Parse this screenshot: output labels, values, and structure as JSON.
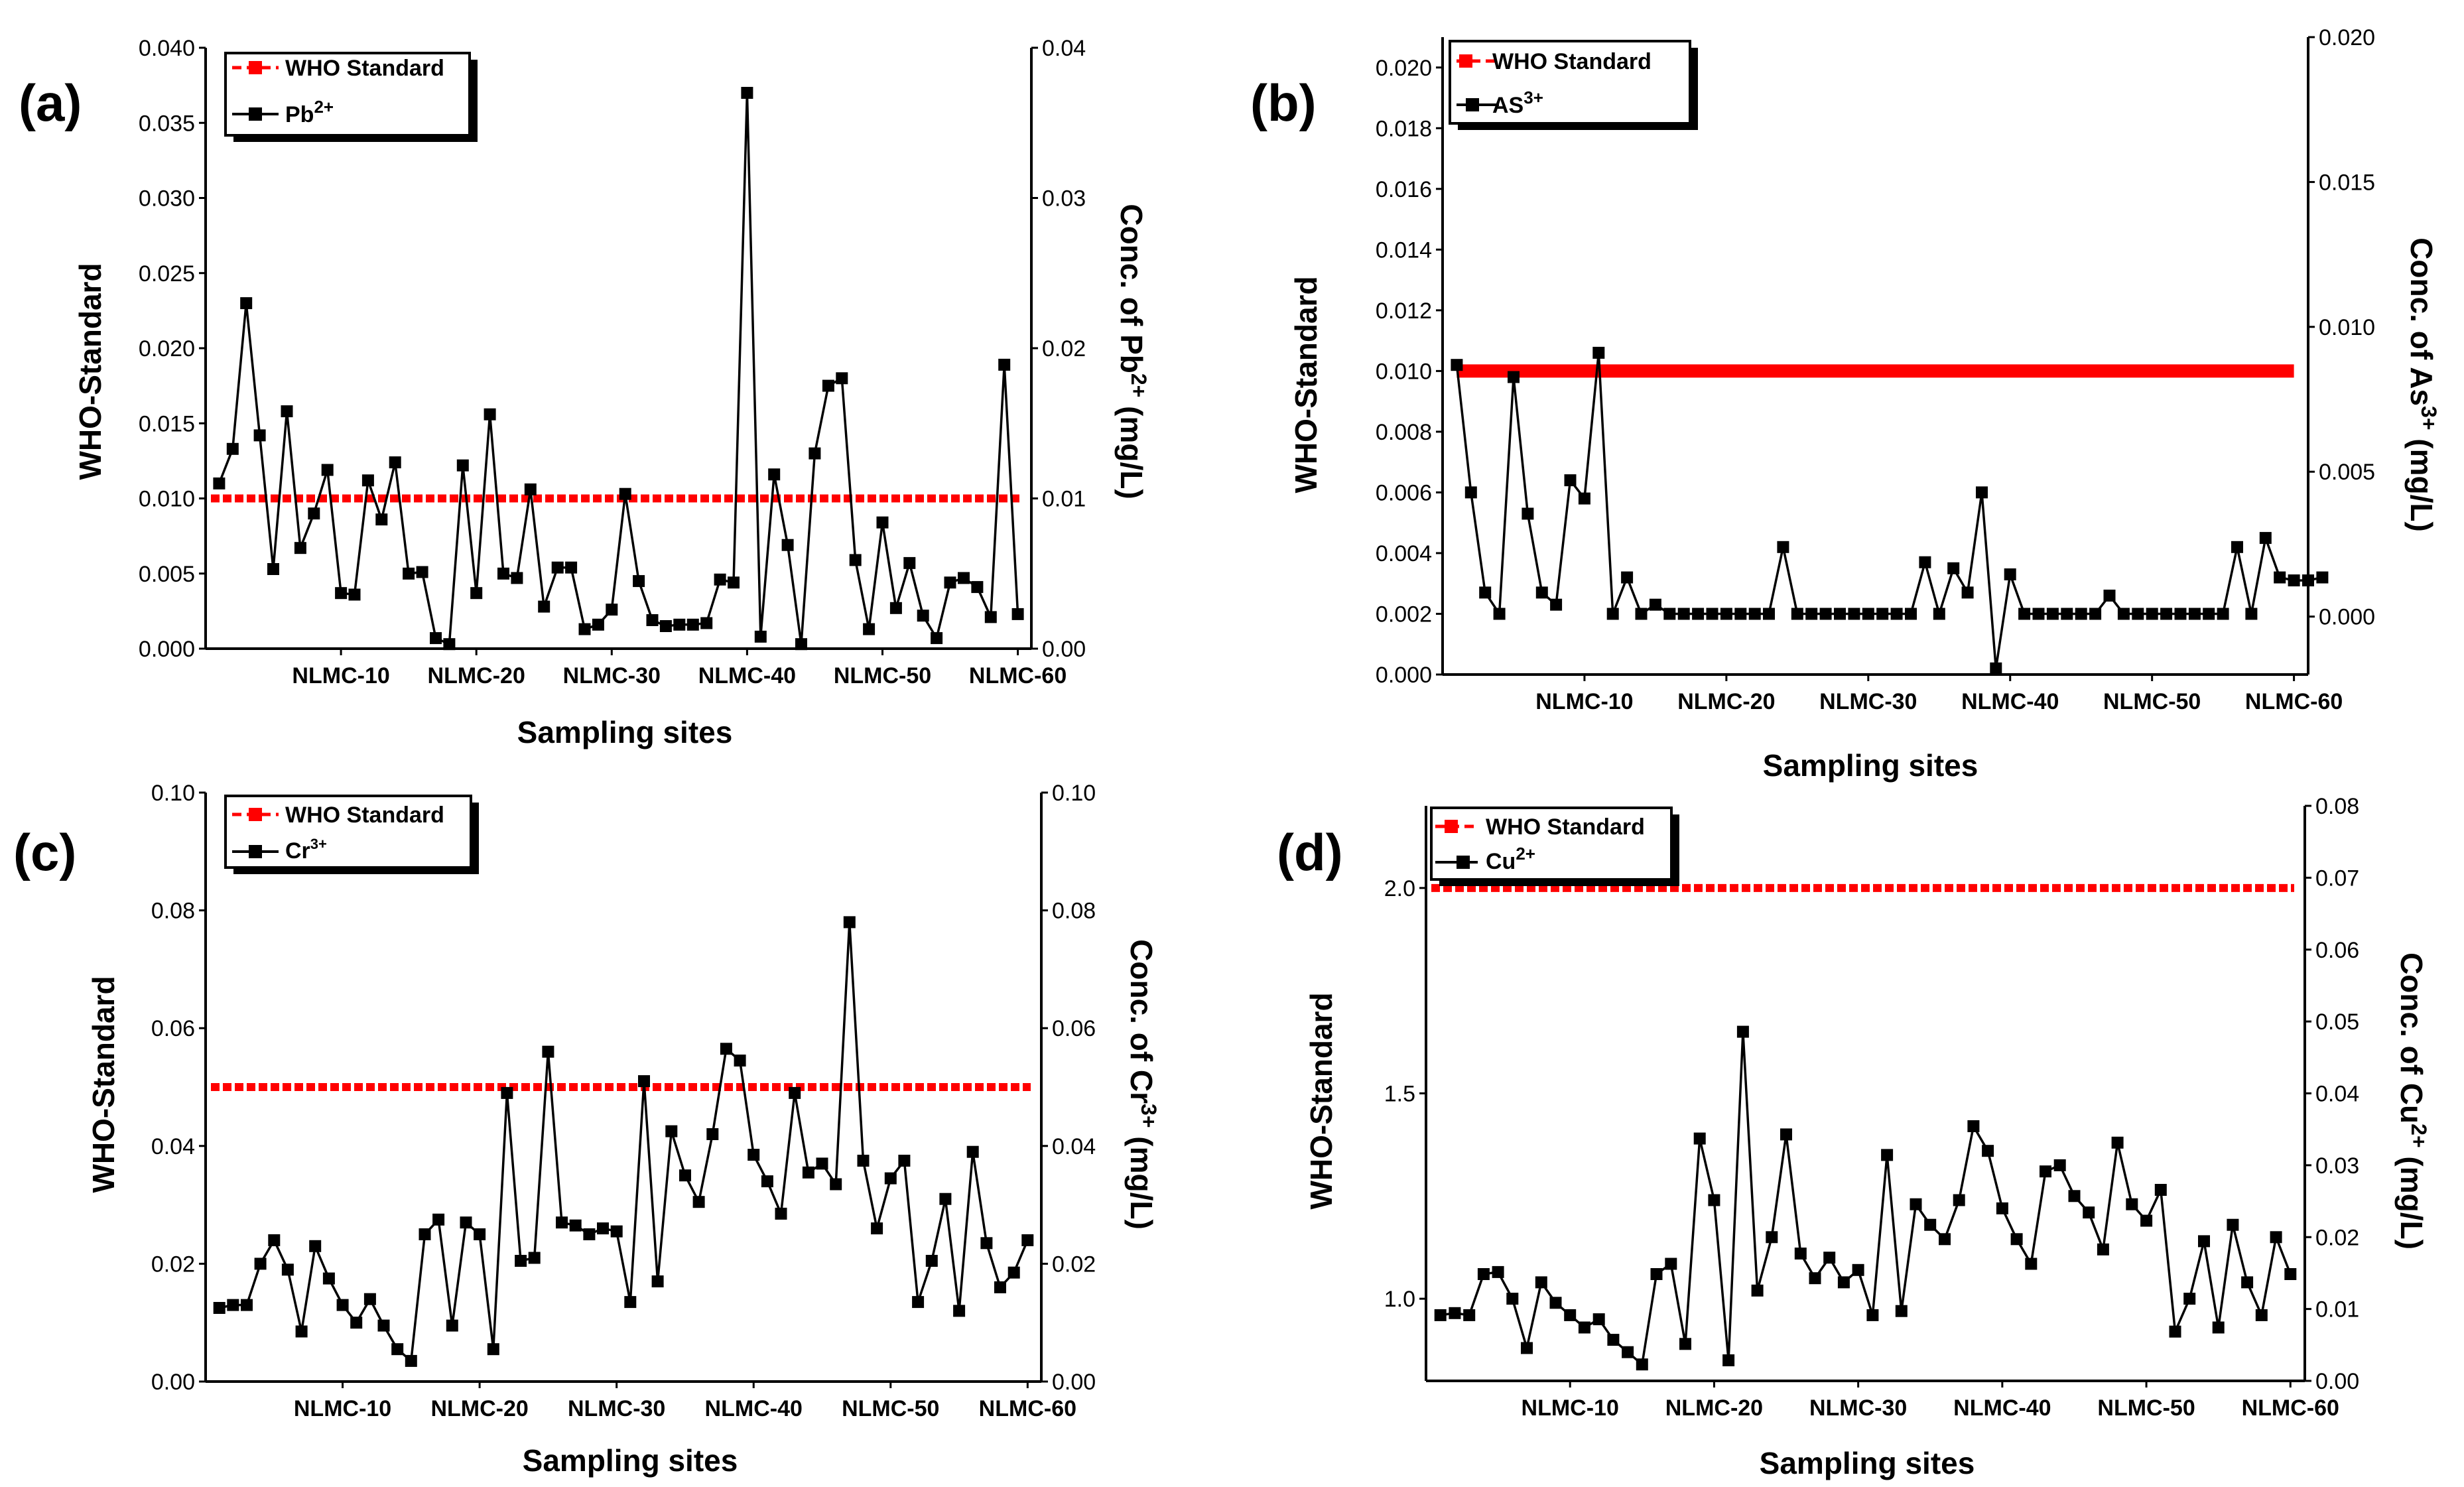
{
  "chart_data": [
    {
      "type": "line",
      "panel_label": "(a)",
      "xlabel": "Sampling sites",
      "ylabel_left": "WHO-Standard",
      "ylabel_right": "Conc. of Pb",
      "ylabel_right_ion": "2+",
      "ylabel_right_unit": " (mg/L)",
      "x_range": [
        0,
        61
      ],
      "x_ticks": [
        10,
        20,
        30,
        40,
        50,
        60
      ],
      "x_tick_labels": [
        "NLMC-10",
        "NLMC-20",
        "NLMC-30",
        "NLMC-40",
        "NLMC-50",
        "NLMC-60"
      ],
      "y_left_range": [
        0,
        0.04
      ],
      "y_left_ticks": [
        "0.000",
        "0.005",
        "0.010",
        "0.015",
        "0.020",
        "0.025",
        "0.030",
        "0.035",
        "0.040"
      ],
      "y_right_range": [
        0,
        0.04
      ],
      "y_right_ticks": [
        "0.00",
        "0.01",
        "0.02",
        "0.03",
        "0.04"
      ],
      "legend": {
        "position": "top-left",
        "standard_label": "WHO Standard",
        "ion_label": "Pb",
        "ion_charge": "2+"
      },
      "who_standard": {
        "value": 0.01,
        "color": "#ff0000",
        "style": "dashed"
      },
      "series": [
        {
          "name": "Pb2+",
          "color": "#000000",
          "values": [
            0.011,
            0.0133,
            0.023,
            0.0142,
            0.0053,
            0.0158,
            0.0067,
            0.009,
            0.0119,
            0.0037,
            0.0036,
            0.0112,
            0.0086,
            0.0124,
            0.005,
            0.0051,
            0.0007,
            0.0003,
            0.0122,
            0.0037,
            0.0156,
            0.005,
            0.0047,
            0.0106,
            0.0028,
            0.0054,
            0.0054,
            0.0013,
            0.0016,
            0.0026,
            0.0103,
            0.0045,
            0.0019,
            0.0015,
            0.0016,
            0.0016,
            0.0017,
            0.0046,
            0.0044,
            0.037,
            0.0008,
            0.0116,
            0.0069,
            0.0003,
            0.013,
            0.0175,
            0.018,
            0.0059,
            0.0013,
            0.0084,
            0.0027,
            0.0057,
            0.0022,
            0.0007,
            0.0044,
            0.0047,
            0.0041,
            0.0021,
            0.0189,
            0.0023
          ]
        }
      ]
    },
    {
      "type": "line",
      "panel_label": "(b)",
      "xlabel": "Sampling sites",
      "ylabel_left": "WHO-Standard",
      "ylabel_right": "Conc. of As",
      "ylabel_right_ion": "3+",
      "ylabel_right_unit": " (mg/L)",
      "x_range": [
        0,
        61
      ],
      "x_ticks": [
        10,
        20,
        30,
        40,
        50,
        60
      ],
      "x_tick_labels": [
        "NLMC-10",
        "NLMC-20",
        "NLMC-30",
        "NLMC-40",
        "NLMC-50",
        "NLMC-60"
      ],
      "y_left_range": [
        0,
        0.021
      ],
      "y_left_ticks": [
        "0.000",
        "0.002",
        "0.004",
        "0.006",
        "0.008",
        "0.010",
        "0.012",
        "0.014",
        "0.016",
        "0.018",
        "0.020"
      ],
      "y_right_range": [
        -0.002,
        0.02
      ],
      "y_right_ticks": [
        "0.000",
        "0.005",
        "0.010",
        "0.015",
        "0.020"
      ],
      "legend": {
        "position": "top-left",
        "standard_label": "WHO Standard",
        "ion_label": "AS",
        "ion_charge": "3+"
      },
      "who_standard": {
        "value": 0.01,
        "color": "#ff0000",
        "style": "solid-thick"
      },
      "series": [
        {
          "name": "As3+",
          "color": "#000000",
          "values": [
            0.0102,
            0.006,
            0.0027,
            0.002,
            0.0098,
            0.0053,
            0.0027,
            0.0023,
            0.0064,
            0.0058,
            0.0106,
            0.002,
            0.0032,
            0.002,
            0.0023,
            0.002,
            0.002,
            0.002,
            0.002,
            0.002,
            0.002,
            0.002,
            0.002,
            0.0042,
            0.002,
            0.002,
            0.002,
            0.002,
            0.002,
            0.002,
            0.002,
            0.002,
            0.002,
            0.0037,
            0.002,
            0.0035,
            0.0027,
            0.006,
            0.0002,
            0.0033,
            0.002,
            0.002,
            0.002,
            0.002,
            0.002,
            0.002,
            0.0026,
            0.002,
            0.002,
            0.002,
            0.002,
            0.002,
            0.002,
            0.002,
            0.002,
            0.0042,
            0.002,
            0.0045,
            0.0032,
            0.0031,
            0.0031,
            0.0032
          ]
        }
      ]
    },
    {
      "type": "line",
      "panel_label": "(c)",
      "xlabel": "Sampling sites",
      "ylabel_left": "WHO-Standard",
      "ylabel_right": "Conc. of Cr",
      "ylabel_right_ion": "3+",
      "ylabel_right_unit": " (mg/L)",
      "x_range": [
        0,
        61
      ],
      "x_ticks": [
        10,
        20,
        30,
        40,
        50,
        60
      ],
      "x_tick_labels": [
        "NLMC-10",
        "NLMC-20",
        "NLMC-30",
        "NLMC-40",
        "NLMC-50",
        "NLMC-60"
      ],
      "y_left_range": [
        0,
        0.1
      ],
      "y_left_ticks": [
        "0.00",
        "0.02",
        "0.04",
        "0.06",
        "0.08",
        "0.10"
      ],
      "y_right_range": [
        0,
        0.1
      ],
      "y_right_ticks": [
        "0.00",
        "0.02",
        "0.04",
        "0.06",
        "0.08",
        "0.10"
      ],
      "legend": {
        "position": "top-left",
        "standard_label": "WHO Standard",
        "ion_label": "Cr",
        "ion_charge": "3+"
      },
      "who_standard": {
        "value": 0.05,
        "color": "#ff0000",
        "style": "dashed"
      },
      "series": [
        {
          "name": "Cr3+",
          "color": "#000000",
          "values": [
            0.0125,
            0.013,
            0.013,
            0.02,
            0.024,
            0.019,
            0.0085,
            0.023,
            0.0175,
            0.013,
            0.01,
            0.014,
            0.0095,
            0.0055,
            0.0035,
            0.025,
            0.0275,
            0.0095,
            0.027,
            0.025,
            0.0055,
            0.049,
            0.0205,
            0.021,
            0.056,
            0.027,
            0.0265,
            0.025,
            0.026,
            0.0255,
            0.0135,
            0.051,
            0.017,
            0.0425,
            0.035,
            0.0305,
            0.042,
            0.0565,
            0.0545,
            0.0385,
            0.034,
            0.0285,
            0.049,
            0.0355,
            0.037,
            0.0335,
            0.078,
            0.0375,
            0.026,
            0.0345,
            0.0375,
            0.0135,
            0.0205,
            0.031,
            0.012,
            0.039,
            0.0235,
            0.016,
            0.0185,
            0.024
          ]
        }
      ]
    },
    {
      "type": "line",
      "panel_label": "(d)",
      "xlabel": "Sampling sites",
      "ylabel_left": "WHO-Standard",
      "ylabel_right": "Conc. of Cu",
      "ylabel_right_ion": "2+",
      "ylabel_right_unit": " (mg/L)",
      "x_range": [
        0,
        61
      ],
      "x_ticks": [
        10,
        20,
        30,
        40,
        50,
        60
      ],
      "x_tick_labels": [
        "NLMC-10",
        "NLMC-20",
        "NLMC-30",
        "NLMC-40",
        "NLMC-50",
        "NLMC-60"
      ],
      "y_left_range": [
        0.8,
        2.2
      ],
      "y_left_ticks": [
        "1.0",
        "1.5",
        "2.0"
      ],
      "y_right_range": [
        0,
        0.08
      ],
      "y_right_ticks": [
        "0.00",
        "0.01",
        "0.02",
        "0.03",
        "0.04",
        "0.05",
        "0.06",
        "0.07",
        "0.08"
      ],
      "legend": {
        "position": "top-left",
        "standard_label": "WHO Standard",
        "ion_label": "Cu",
        "ion_charge": "2+"
      },
      "who_standard": {
        "value": 2.0,
        "color": "#ff0000",
        "style": "dashed"
      },
      "series": [
        {
          "name": "Cu2+",
          "color": "#000000",
          "values": [
            0.96,
            0.965,
            0.96,
            1.06,
            1.065,
            1.0,
            0.88,
            1.04,
            0.99,
            0.96,
            0.93,
            0.95,
            0.9,
            0.87,
            0.84,
            1.06,
            1.085,
            0.89,
            1.39,
            1.24,
            0.85,
            1.65,
            1.02,
            1.15,
            1.4,
            1.11,
            1.05,
            1.1,
            1.04,
            1.07,
            0.96,
            1.35,
            0.97,
            1.23,
            1.18,
            1.145,
            1.24,
            1.42,
            1.36,
            1.22,
            1.145,
            1.085,
            1.31,
            1.325,
            1.25,
            1.21,
            1.12,
            1.38,
            1.23,
            1.19,
            1.265,
            0.92,
            1.0,
            1.14,
            0.93,
            1.18,
            1.04,
            0.96,
            1.15,
            1.06
          ]
        }
      ]
    }
  ]
}
